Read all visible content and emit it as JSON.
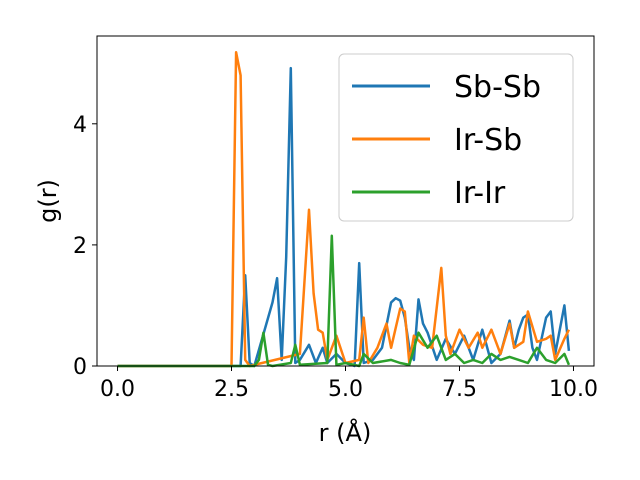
{
  "chart_data": {
    "type": "line",
    "xlabel": "r (Å)",
    "ylabel": "g(r)",
    "xlim": [
      -0.45,
      10.45
    ],
    "ylim": [
      0,
      5.45
    ],
    "xticks": [
      "0.0",
      "2.5",
      "5.0",
      "7.5",
      "10.0"
    ],
    "xtick_values": [
      0,
      2.5,
      5.0,
      7.5,
      10.0
    ],
    "yticks": [
      "0",
      "2",
      "4"
    ],
    "ytick_values": [
      0,
      2,
      4
    ],
    "grid": false,
    "legend_position": "upper-right",
    "series": [
      {
        "name": "Sb-Sb",
        "color": "#1f77b4",
        "x": [
          0,
          2.5,
          2.7,
          2.8,
          2.9,
          3.0,
          3.4,
          3.5,
          3.6,
          3.7,
          3.8,
          3.9,
          4.0,
          4.2,
          4.35,
          4.5,
          4.6,
          4.8,
          5.0,
          5.2,
          5.3,
          5.4,
          5.6,
          5.8,
          6.0,
          6.1,
          6.2,
          6.3,
          6.4,
          6.5,
          6.6,
          6.7,
          6.8,
          7.0,
          7.2,
          7.4,
          7.6,
          7.8,
          8.0,
          8.2,
          8.4,
          8.6,
          8.7,
          8.8,
          8.9,
          9.0,
          9.1,
          9.2,
          9.4,
          9.5,
          9.6,
          9.8,
          9.9
        ],
        "y": [
          0,
          0,
          0,
          1.5,
          0.05,
          0,
          1.05,
          1.45,
          0.1,
          1.8,
          4.92,
          0.05,
          0.1,
          0.35,
          0.05,
          0.3,
          0.05,
          0.2,
          0.05,
          0,
          1.7,
          0.05,
          0.1,
          0.3,
          1.05,
          1.12,
          1.08,
          0.8,
          0.3,
          0.1,
          1.1,
          0.7,
          0.55,
          0.1,
          0.45,
          0.2,
          0.5,
          0.1,
          0.6,
          0.05,
          0.2,
          0.75,
          0.3,
          0.6,
          0.8,
          0.85,
          0.3,
          0.1,
          0.8,
          0.9,
          0.2,
          1.0,
          0.25
        ]
      },
      {
        "name": "Ir-Sb",
        "color": "#ff7f0e",
        "x": [
          0,
          2.5,
          2.6,
          2.7,
          2.8,
          2.9,
          4.0,
          4.2,
          4.3,
          4.4,
          4.5,
          4.6,
          4.8,
          5.0,
          5.3,
          5.4,
          5.5,
          5.7,
          5.9,
          6.0,
          6.2,
          6.3,
          6.4,
          6.5,
          6.7,
          6.9,
          7.1,
          7.2,
          7.3,
          7.5,
          7.7,
          7.9,
          8.0,
          8.2,
          8.4,
          8.6,
          8.7,
          8.9,
          9.0,
          9.2,
          9.4,
          9.5,
          9.6,
          9.8,
          9.9
        ],
        "y": [
          0,
          0,
          5.18,
          4.8,
          0.1,
          0,
          0.2,
          2.58,
          1.2,
          0.6,
          0.55,
          0.1,
          0.5,
          0.05,
          0.1,
          0.8,
          0.05,
          0.3,
          0.7,
          0.3,
          0.95,
          0.9,
          0.05,
          0.5,
          0.35,
          0.3,
          1.62,
          0.5,
          0.2,
          0.6,
          0.3,
          0.55,
          0.3,
          0.6,
          0.2,
          0.7,
          0.3,
          0.4,
          0.9,
          0.4,
          0.45,
          0.5,
          0.1,
          0.45,
          0.6
        ]
      },
      {
        "name": "Ir-Ir",
        "color": "#2ca02c",
        "x": [
          0,
          2.8,
          3.0,
          3.1,
          3.2,
          3.3,
          3.4,
          3.8,
          3.9,
          4.0,
          4.6,
          4.7,
          4.8,
          5.0,
          5.3,
          5.4,
          5.6,
          6.0,
          6.2,
          6.4,
          6.6,
          6.8,
          7.0,
          7.2,
          7.4,
          7.6,
          7.8,
          8.0,
          8.2,
          8.4,
          8.6,
          8.8,
          9.0,
          9.2,
          9.4,
          9.6,
          9.8,
          9.9
        ],
        "y": [
          0,
          0,
          0,
          0.1,
          0.55,
          0.02,
          0,
          0.05,
          0.35,
          0.02,
          0.05,
          2.15,
          0.02,
          0.05,
          0,
          0.2,
          0.05,
          0.1,
          0.05,
          0.02,
          0.55,
          0.3,
          0.5,
          0.1,
          0.2,
          0.05,
          0.1,
          0.05,
          0.2,
          0.1,
          0.15,
          0.1,
          0.05,
          0.3,
          0.1,
          0.05,
          0.2,
          0.02
        ]
      }
    ]
  }
}
